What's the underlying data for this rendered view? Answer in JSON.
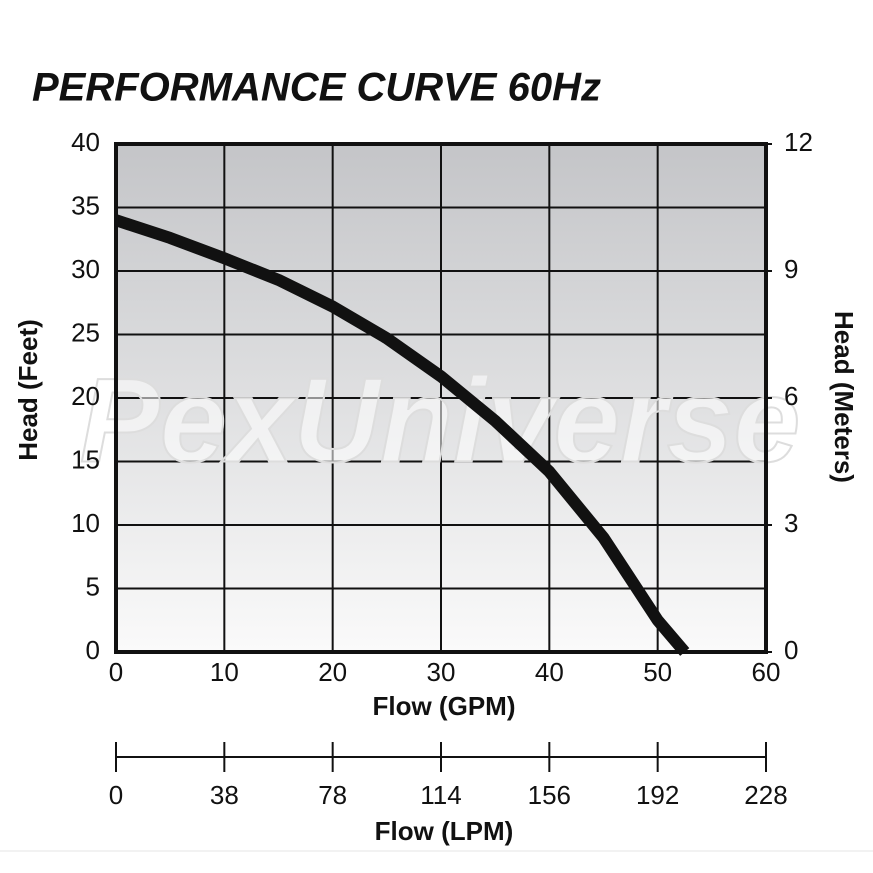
{
  "chart_data": {
    "type": "line",
    "title": "PERFORMANCE CURVE 60Hz",
    "watermark": "PexUniverse",
    "x_label": "Flow (GPM)",
    "y_label": "Head (Feet)",
    "y2_label": "Head (Meters)",
    "x2_label": "Flow (LPM)",
    "xlim": [
      0,
      60
    ],
    "xticks": [
      0,
      10,
      20,
      30,
      40,
      50,
      60
    ],
    "ylim": [
      0,
      40
    ],
    "yticks": [
      0,
      5,
      10,
      15,
      20,
      25,
      30,
      35,
      40
    ],
    "y2lim": [
      0,
      12
    ],
    "y2ticks": [
      0,
      3,
      6,
      9,
      12
    ],
    "x2ticks": [
      0,
      38,
      78,
      114,
      156,
      192,
      228
    ],
    "grid": true,
    "series": [
      {
        "color": "#111111",
        "x": [
          0,
          5,
          10,
          15,
          20,
          25,
          30,
          35,
          40,
          45,
          50,
          52.5
        ],
        "values": [
          34,
          32.6,
          31,
          29.3,
          27.2,
          24.7,
          21.7,
          18.2,
          14.2,
          9,
          2.5,
          0
        ]
      }
    ]
  }
}
